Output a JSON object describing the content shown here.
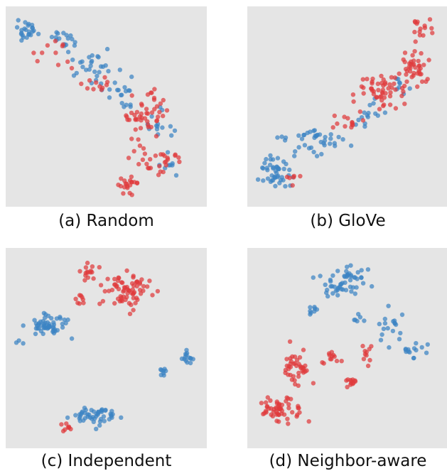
{
  "colors": {
    "panel_background": "#e5e5e5",
    "class_a": "#3b84c4",
    "class_b": "#df3a3c"
  },
  "chart_data": [
    {
      "type": "scatter",
      "title": "(a) Random",
      "grid": false,
      "series": [
        {
          "color": "#3b84c4",
          "clusters": [
            [
              0.08,
              0.1,
              0.07,
              0.06,
              24
            ],
            [
              0.28,
              0.14,
              0.09,
              0.06,
              16
            ],
            [
              0.42,
              0.3,
              0.13,
              0.09,
              28
            ],
            [
              0.6,
              0.45,
              0.12,
              0.08,
              18
            ],
            [
              0.78,
              0.6,
              0.09,
              0.08,
              14
            ],
            [
              0.85,
              0.8,
              0.06,
              0.06,
              8
            ]
          ]
        },
        {
          "color": "#df3a3c",
          "clusters": [
            [
              0.22,
              0.2,
              0.1,
              0.08,
              10
            ],
            [
              0.45,
              0.38,
              0.1,
              0.08,
              12
            ],
            [
              0.7,
              0.55,
              0.12,
              0.09,
              46
            ],
            [
              0.75,
              0.77,
              0.12,
              0.07,
              30
            ],
            [
              0.62,
              0.9,
              0.08,
              0.05,
              20
            ]
          ]
        }
      ]
    },
    {
      "type": "scatter",
      "title": "(b) GloVe",
      "grid": false,
      "series": [
        {
          "color": "#3b84c4",
          "clusters": [
            [
              0.12,
              0.85,
              0.08,
              0.08,
              45
            ],
            [
              0.35,
              0.68,
              0.15,
              0.07,
              40
            ],
            [
              0.6,
              0.55,
              0.08,
              0.08,
              15
            ],
            [
              0.77,
              0.4,
              0.06,
              0.06,
              8
            ]
          ]
        },
        {
          "color": "#df3a3c",
          "clusters": [
            [
              0.88,
              0.08,
              0.05,
              0.05,
              15
            ],
            [
              0.85,
              0.3,
              0.08,
              0.1,
              40
            ],
            [
              0.68,
              0.42,
              0.12,
              0.09,
              50
            ],
            [
              0.48,
              0.58,
              0.12,
              0.07,
              14
            ],
            [
              0.22,
              0.88,
              0.05,
              0.04,
              6
            ]
          ]
        }
      ]
    },
    {
      "type": "scatter",
      "title": "(c) Independent",
      "grid": false,
      "series": [
        {
          "color": "#3b84c4",
          "clusters": [
            [
              0.2,
              0.38,
              0.1,
              0.06,
              55
            ],
            [
              0.05,
              0.48,
              0.03,
              0.03,
              3
            ],
            [
              0.92,
              0.55,
              0.04,
              0.03,
              14
            ],
            [
              0.8,
              0.63,
              0.02,
              0.02,
              8
            ],
            [
              0.45,
              0.85,
              0.14,
              0.05,
              50
            ]
          ]
        },
        {
          "color": "#df3a3c",
          "clusters": [
            [
              0.4,
              0.1,
              0.06,
              0.05,
              15
            ],
            [
              0.6,
              0.2,
              0.12,
              0.09,
              70
            ],
            [
              0.38,
              0.25,
              0.04,
              0.04,
              8
            ],
            [
              0.3,
              0.92,
              0.04,
              0.03,
              8
            ]
          ]
        }
      ]
    },
    {
      "type": "scatter",
      "title": "(d) Neighbor-aware",
      "grid": false,
      "series": [
        {
          "color": "#3b84c4",
          "clusters": [
            [
              0.48,
              0.15,
              0.12,
              0.09,
              55
            ],
            [
              0.72,
              0.4,
              0.06,
              0.1,
              18
            ],
            [
              0.55,
              0.35,
              0.04,
              0.05,
              6
            ],
            [
              0.85,
              0.5,
              0.05,
              0.07,
              14
            ],
            [
              0.33,
              0.3,
              0.04,
              0.05,
              8
            ]
          ]
        },
        {
          "color": "#df3a3c",
          "clusters": [
            [
              0.22,
              0.6,
              0.08,
              0.1,
              40
            ],
            [
              0.15,
              0.82,
              0.1,
              0.07,
              55
            ],
            [
              0.52,
              0.68,
              0.03,
              0.03,
              12
            ],
            [
              0.6,
              0.55,
              0.03,
              0.06,
              10
            ],
            [
              0.4,
              0.55,
              0.05,
              0.07,
              12
            ]
          ]
        }
      ]
    }
  ]
}
